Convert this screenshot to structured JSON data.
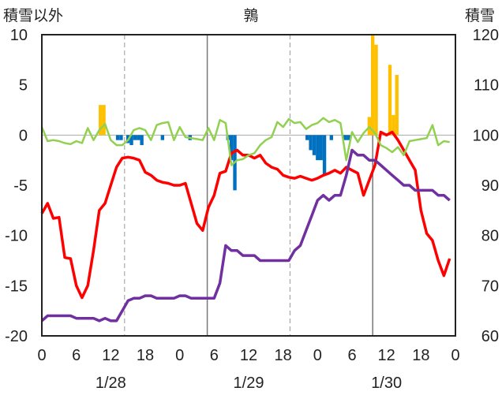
{
  "chart_data": {
    "type": "bar+line",
    "title": "鶉",
    "left_axis_label": "積雪以外",
    "right_axis_label": "積雪",
    "ylim_left": [
      -20,
      10
    ],
    "ylim_right": [
      60,
      120
    ],
    "left_ticks": [
      "10",
      "5",
      "0",
      "-5",
      "-10",
      "-15",
      "-20"
    ],
    "right_ticks": [
      "120",
      "110",
      "100",
      "90",
      "80",
      "70",
      "60"
    ],
    "x_hours_range": [
      0,
      60
    ],
    "x_tick_labels": [
      "0",
      "6",
      "12",
      "18",
      "0",
      "6",
      "12",
      "18",
      "0",
      "6",
      "12",
      "18",
      "0"
    ],
    "date_labels": [
      "1/28",
      "1/29",
      "1/30"
    ],
    "grid": "dashed vertical at 12h and 0h, solid at day boundaries",
    "colors": {
      "bar_positive": "#FFC000",
      "bar_negative": "#0070C0",
      "red_line": "#FF0000",
      "purple_line": "#7030A0",
      "green_line": "#92D050"
    },
    "bars": [
      {
        "h": 8.5,
        "v": 3
      },
      {
        "h": 9.0,
        "v": 3
      },
      {
        "h": 11.0,
        "v": -0.5
      },
      {
        "h": 11.5,
        "v": -0.5
      },
      {
        "h": 12.5,
        "v": -0.8
      },
      {
        "h": 13.0,
        "v": -1
      },
      {
        "h": 13.5,
        "v": -0.5
      },
      {
        "h": 14.0,
        "v": -0.5
      },
      {
        "h": 14.5,
        "v": -1
      },
      {
        "h": 17.5,
        "v": -0.5
      },
      {
        "h": 21.5,
        "v": -0.5
      },
      {
        "h": 27.0,
        "v": -0.5
      },
      {
        "h": 27.5,
        "v": -2.5
      },
      {
        "h": 28.0,
        "v": -5.5
      },
      {
        "h": 38.5,
        "v": -0.5
      },
      {
        "h": 39.0,
        "v": -1.5
      },
      {
        "h": 39.5,
        "v": -2
      },
      {
        "h": 40.0,
        "v": -2.5
      },
      {
        "h": 40.5,
        "v": -2.5
      },
      {
        "h": 41.0,
        "v": -4
      },
      {
        "h": 42.0,
        "v": -0.5
      },
      {
        "h": 44.0,
        "v": -0.5
      },
      {
        "h": 44.5,
        "v": -0.5
      },
      {
        "h": 47.5,
        "v": 1.8
      },
      {
        "h": 48.0,
        "v": 10
      },
      {
        "h": 48.5,
        "v": 9
      },
      {
        "h": 50.5,
        "v": 7
      },
      {
        "h": 51.0,
        "v": 2
      },
      {
        "h": 51.5,
        "v": 6
      }
    ],
    "series": [
      {
        "axis": "left",
        "color_key": "red_line",
        "points": [
          [
            0,
            -7.8
          ],
          [
            0.5,
            -6.8
          ],
          [
            1,
            -8.3
          ],
          [
            1.5,
            -8.2
          ],
          [
            2,
            -12.2
          ],
          [
            2.5,
            -12.3
          ],
          [
            3,
            -15
          ],
          [
            3.5,
            -16.2
          ],
          [
            4,
            -15
          ],
          [
            4.5,
            -11.5
          ],
          [
            5,
            -7.5
          ],
          [
            5.5,
            -6.8
          ],
          [
            6,
            -5
          ],
          [
            6.5,
            -3.2
          ],
          [
            7,
            -2.3
          ],
          [
            7.5,
            -2.2
          ],
          [
            8,
            -2.3
          ],
          [
            8.5,
            -2.5
          ],
          [
            9,
            -3.7
          ],
          [
            9.5,
            -4
          ],
          [
            10,
            -4.5
          ],
          [
            10.5,
            -4.7
          ],
          [
            11,
            -4.8
          ],
          [
            11.5,
            -5
          ],
          [
            12,
            -5
          ],
          [
            12.5,
            -4.8
          ],
          [
            13,
            -6.8
          ],
          [
            13.5,
            -8.8
          ],
          [
            14,
            -9.5
          ],
          [
            14.5,
            -7.2
          ],
          [
            15,
            -6
          ],
          [
            15.5,
            -3.8
          ],
          [
            16,
            -3.6
          ],
          [
            16.5,
            -1.8
          ],
          [
            17,
            -1.5
          ],
          [
            17.5,
            -2
          ],
          [
            18,
            -2
          ],
          [
            18.5,
            -2.3
          ],
          [
            19,
            -2
          ],
          [
            19.5,
            -2.8
          ],
          [
            20,
            -3.2
          ],
          [
            20.5,
            -3.4
          ],
          [
            21,
            -4
          ],
          [
            21.5,
            -4.2
          ],
          [
            22,
            -4.3
          ],
          [
            22.5,
            -4.1
          ],
          [
            23,
            -4.3
          ],
          [
            23.5,
            -4.5
          ],
          [
            24,
            -4.3
          ],
          [
            24.5,
            -4
          ],
          [
            25,
            -3.8
          ],
          [
            25.5,
            -3.5
          ],
          [
            26,
            -3.8
          ],
          [
            26.5,
            -3.2
          ],
          [
            27,
            -3.5
          ],
          [
            27.5,
            -3.8
          ],
          [
            28,
            -6
          ],
          [
            28.5,
            -4.5
          ],
          [
            29,
            -3
          ],
          [
            29.5,
            0.3
          ],
          [
            30,
            0
          ],
          [
            30.5,
            0.3
          ],
          [
            31,
            -0.5
          ],
          [
            31.5,
            -1.5
          ],
          [
            32,
            -2.5
          ],
          [
            32.5,
            -3.5
          ],
          [
            33,
            -7.5
          ],
          [
            33.5,
            -9.8
          ],
          [
            34,
            -10.5
          ],
          [
            34.5,
            -12.5
          ],
          [
            35,
            -14
          ],
          [
            35.5,
            -12.3
          ]
        ]
      },
      {
        "axis": "right",
        "color_key": "purple_line",
        "points": [
          [
            0,
            63
          ],
          [
            0.5,
            64
          ],
          [
            1,
            64
          ],
          [
            1.5,
            64
          ],
          [
            2,
            64
          ],
          [
            2.5,
            64
          ],
          [
            3,
            63.5
          ],
          [
            3.5,
            63.5
          ],
          [
            4,
            63.5
          ],
          [
            4.5,
            63.5
          ],
          [
            5,
            63
          ],
          [
            5.5,
            63.5
          ],
          [
            6,
            63
          ],
          [
            6.5,
            63
          ],
          [
            7,
            65
          ],
          [
            7.5,
            67
          ],
          [
            8,
            67.5
          ],
          [
            8.5,
            67.5
          ],
          [
            9,
            68
          ],
          [
            9.5,
            68
          ],
          [
            10,
            67.5
          ],
          [
            10.5,
            67.5
          ],
          [
            11,
            67.5
          ],
          [
            11.5,
            67.5
          ],
          [
            12,
            68
          ],
          [
            12.5,
            68
          ],
          [
            13,
            67.5
          ],
          [
            13.5,
            67.5
          ],
          [
            14,
            67.5
          ],
          [
            14.5,
            67.5
          ],
          [
            15,
            67.5
          ],
          [
            15.5,
            70.5
          ],
          [
            16,
            78
          ],
          [
            16.5,
            77
          ],
          [
            17,
            77
          ],
          [
            17.5,
            76
          ],
          [
            18,
            76
          ],
          [
            18.5,
            76
          ],
          [
            19,
            75
          ],
          [
            19.5,
            75
          ],
          [
            20,
            75
          ],
          [
            20.5,
            75
          ],
          [
            21,
            75
          ],
          [
            21.5,
            75
          ],
          [
            22,
            77
          ],
          [
            22.5,
            78
          ],
          [
            23,
            81
          ],
          [
            23.5,
            84
          ],
          [
            24,
            87
          ],
          [
            24.5,
            88
          ],
          [
            25,
            87
          ],
          [
            25.5,
            88
          ],
          [
            26,
            88
          ],
          [
            26.5,
            92
          ],
          [
            27,
            97
          ],
          [
            27.5,
            96
          ],
          [
            28,
            96
          ],
          [
            28.5,
            95
          ],
          [
            29,
            95
          ],
          [
            29.5,
            94
          ],
          [
            30,
            93
          ],
          [
            30.5,
            92
          ],
          [
            31,
            91
          ],
          [
            31.5,
            90
          ],
          [
            32,
            90
          ],
          [
            32.5,
            89
          ],
          [
            33,
            89
          ],
          [
            33.5,
            89
          ],
          [
            34,
            89
          ],
          [
            34.5,
            88
          ],
          [
            35,
            88
          ],
          [
            35.5,
            87
          ]
        ]
      },
      {
        "axis": "left",
        "color_key": "green_line",
        "points": [
          [
            0,
            0.8
          ],
          [
            0.5,
            -0.6
          ],
          [
            1,
            -0.5
          ],
          [
            1.5,
            -0.6
          ],
          [
            2,
            -0.8
          ],
          [
            2.5,
            -0.9
          ],
          [
            3,
            -0.6
          ],
          [
            3.5,
            -0.8
          ],
          [
            4,
            0.7
          ],
          [
            4.5,
            -0.5
          ],
          [
            5,
            0.5
          ],
          [
            5.5,
            1.1
          ],
          [
            6,
            -0.5
          ],
          [
            6.5,
            -1
          ],
          [
            7,
            -1
          ],
          [
            7.5,
            -0.5
          ],
          [
            8,
            0.5
          ],
          [
            8.5,
            0.7
          ],
          [
            9,
            0.5
          ],
          [
            9.5,
            -0.5
          ],
          [
            10,
            1
          ],
          [
            10.5,
            1.2
          ],
          [
            11,
            1.3
          ],
          [
            11.5,
            -0.5
          ],
          [
            12,
            0.8
          ],
          [
            12.5,
            -0.2
          ],
          [
            13,
            -0.3
          ],
          [
            13.5,
            -0.4
          ],
          [
            14,
            -0.5
          ],
          [
            14.5,
            0.7
          ],
          [
            15,
            -0.5
          ],
          [
            15.5,
            1.5
          ],
          [
            16,
            1.2
          ],
          [
            16.5,
            -3
          ],
          [
            17,
            -2.5
          ],
          [
            17.5,
            -2.4
          ],
          [
            18,
            -2
          ],
          [
            18.5,
            -1.8
          ],
          [
            19,
            -1
          ],
          [
            19.5,
            -0.5
          ],
          [
            20,
            -0.2
          ],
          [
            20.5,
            1.3
          ],
          [
            21,
            0.8
          ],
          [
            21.5,
            1.6
          ],
          [
            22,
            1.2
          ],
          [
            22.5,
            1.3
          ],
          [
            23,
            0.6
          ],
          [
            23.5,
            1
          ],
          [
            24,
            1.2
          ],
          [
            24.5,
            1.7
          ],
          [
            25,
            1.3
          ],
          [
            25.5,
            1.5
          ],
          [
            26,
            1.2
          ],
          [
            26.5,
            -2.5
          ],
          [
            27,
            0.3
          ],
          [
            27.5,
            -0.7
          ],
          [
            28,
            0.2
          ],
          [
            28.5,
            0.8
          ],
          [
            29,
            0.2
          ],
          [
            29.5,
            -1
          ],
          [
            30,
            -1.3
          ],
          [
            30.5,
            -1.7
          ],
          [
            31,
            -1.2
          ],
          [
            31.5,
            -2
          ],
          [
            32,
            -0.6
          ],
          [
            32.5,
            -0.5
          ],
          [
            33,
            -0.4
          ],
          [
            33.5,
            -0.3
          ],
          [
            34,
            1
          ],
          [
            34.5,
            -1
          ],
          [
            35,
            -0.6
          ],
          [
            35.5,
            -0.7
          ]
        ]
      }
    ]
  }
}
